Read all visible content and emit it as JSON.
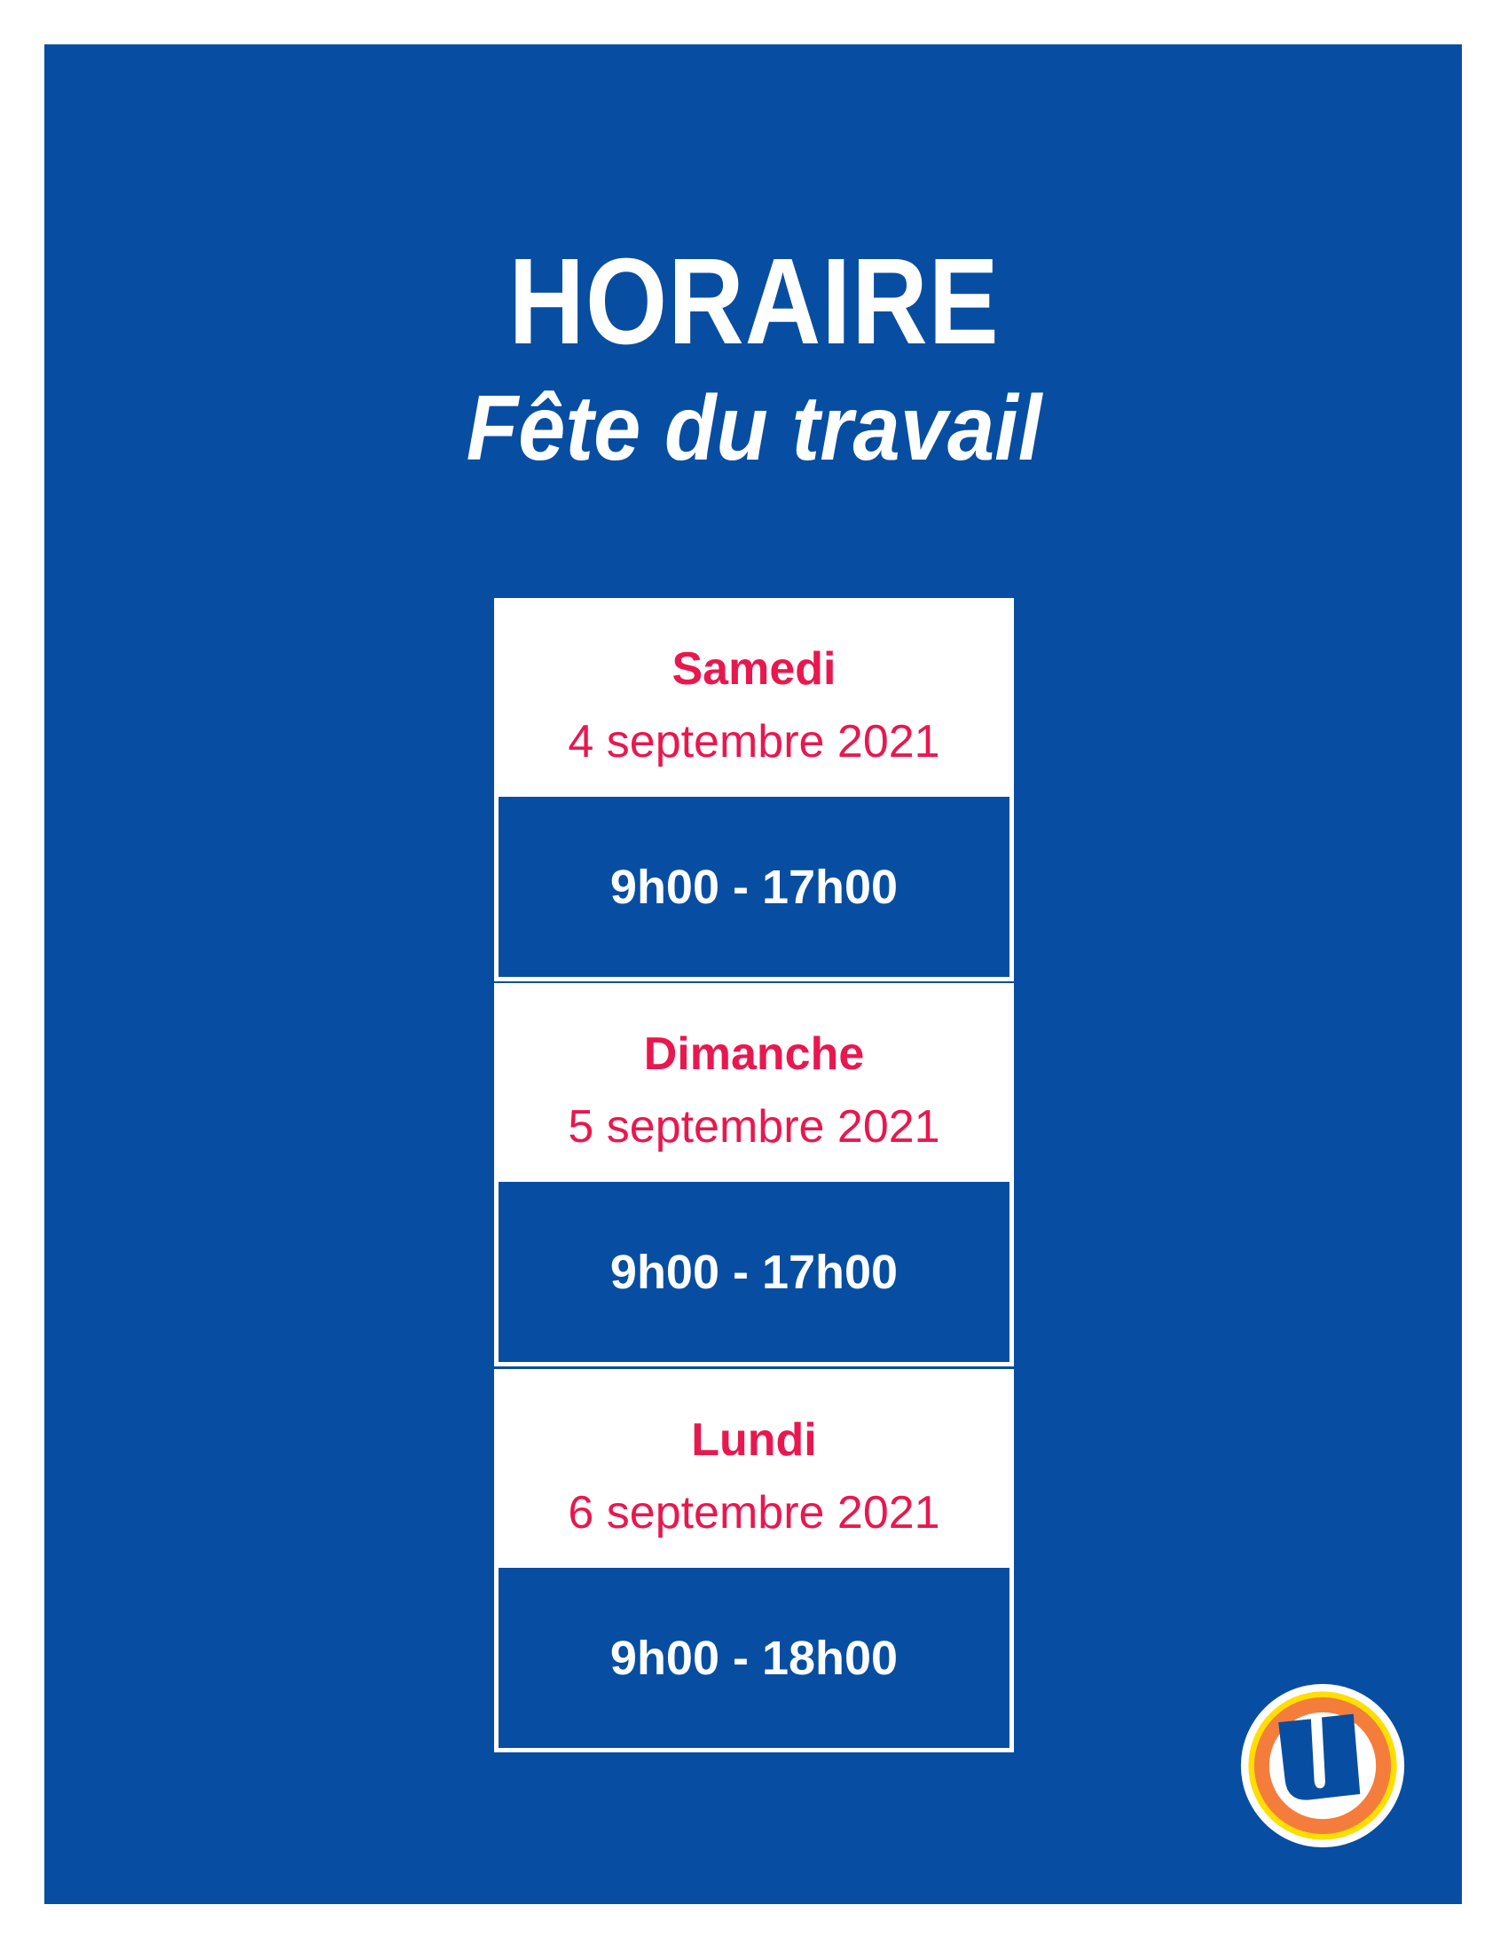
{
  "header": {
    "title": "HORAIRE",
    "subtitle": "Fête du travail"
  },
  "schedule": [
    {
      "day": "Samedi",
      "date": "4 septembre 2021",
      "hours": "9h00 - 17h00"
    },
    {
      "day": "Dimanche",
      "date": "5 septembre 2021",
      "hours": "9h00 - 17h00"
    },
    {
      "day": "Lundi",
      "date": "6 septembre 2021",
      "hours": "9h00 - 18h00"
    }
  ],
  "logo": {
    "icon": "u-logo-icon",
    "letter": "U"
  },
  "colors": {
    "background": "#074ea2",
    "accent": "#e8184f",
    "logo_orange": "#f47d3c",
    "logo_yellow": "#ffde00"
  }
}
